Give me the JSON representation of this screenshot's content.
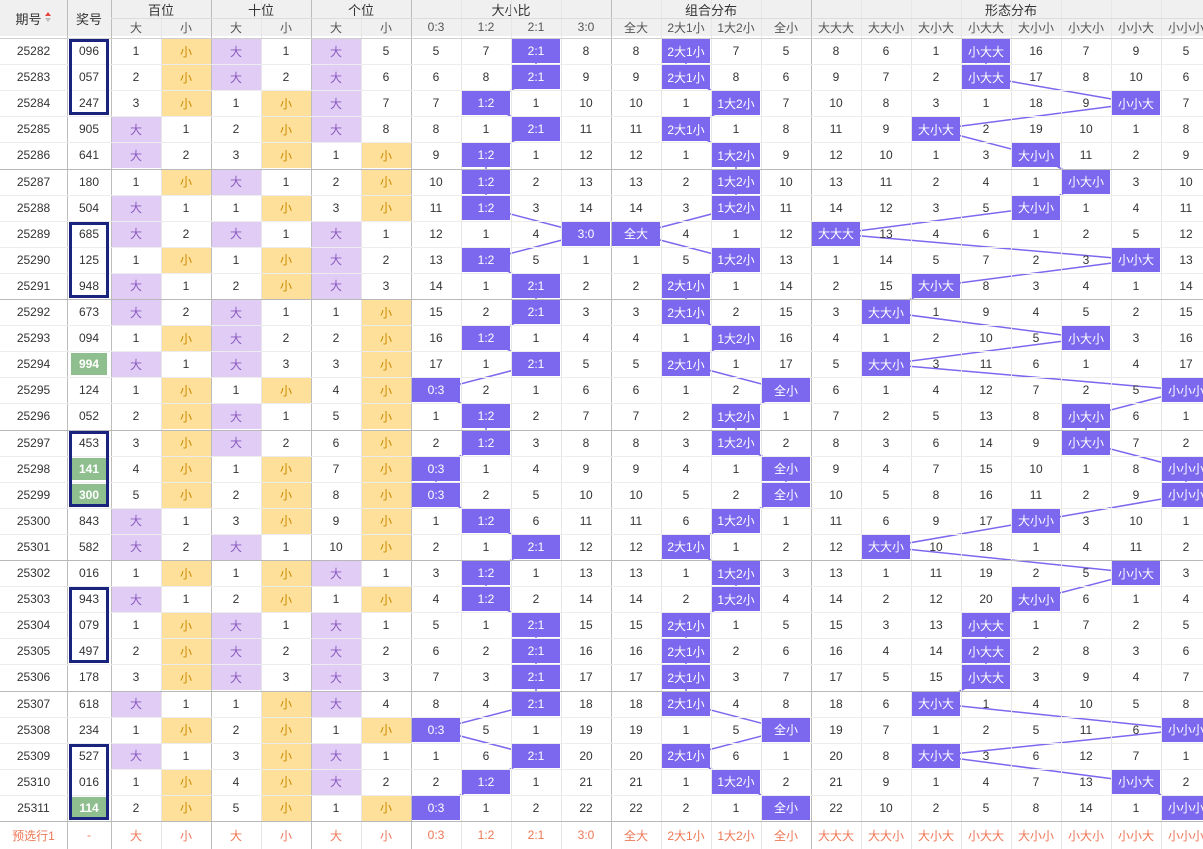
{
  "header": {
    "period_label": "期号",
    "sort_icon": "sort-up-down-icon",
    "prize_label": "奖号",
    "groups": [
      "百位",
      "十位",
      "个位",
      "大小比",
      "组合分布",
      "形态分布"
    ],
    "sub": [
      "大",
      "小",
      "大",
      "小",
      "大",
      "小",
      "0:3",
      "1:2",
      "2:1",
      "3:0",
      "全大",
      "2大1小",
      "1大2小",
      "全小",
      "大大大",
      "大大小",
      "大小大",
      "小大大",
      "大小小",
      "小大小",
      "小小大",
      "小小小"
    ]
  },
  "colors": {
    "highlight": "#7b68ee",
    "big": "#e1ccf6",
    "small": "#ffe09a",
    "repeat": "#8fbf8f",
    "box": "#1a237e",
    "line": "#7b68ee"
  },
  "rows": [
    {
      "p": "25282",
      "n": "096",
      "h": [
        1,
        "小"
      ],
      "t": [
        "大",
        1
      ],
      "u": [
        "大",
        5
      ],
      "r": [
        5,
        7,
        "2:1",
        8
      ],
      "z": [
        8,
        "2大1小",
        7,
        5
      ],
      "f": [
        8,
        6,
        1,
        "小大大",
        16,
        7,
        9,
        5
      ]
    },
    {
      "p": "25283",
      "n": "057",
      "h": [
        2,
        "小"
      ],
      "t": [
        "大",
        2
      ],
      "u": [
        "大",
        6
      ],
      "r": [
        6,
        8,
        "2:1",
        9
      ],
      "z": [
        9,
        "2大1小",
        8,
        6
      ],
      "f": [
        9,
        7,
        2,
        "小大大",
        17,
        8,
        10,
        6
      ]
    },
    {
      "p": "25284",
      "n": "247",
      "h": [
        3,
        "小"
      ],
      "t": [
        1,
        "小"
      ],
      "u": [
        "大",
        7
      ],
      "r": [
        7,
        "1:2",
        1,
        10
      ],
      "z": [
        10,
        1,
        "1大2小",
        7
      ],
      "f": [
        10,
        8,
        3,
        1,
        18,
        9,
        "小小大",
        7
      ]
    },
    {
      "p": "25285",
      "n": "905",
      "h": [
        "大",
        1
      ],
      "t": [
        2,
        "小"
      ],
      "u": [
        "大",
        8
      ],
      "r": [
        8,
        1,
        "2:1",
        11
      ],
      "z": [
        11,
        "2大1小",
        1,
        8
      ],
      "f": [
        11,
        9,
        "大小大",
        2,
        19,
        10,
        1,
        8
      ]
    },
    {
      "p": "25286",
      "n": "641",
      "h": [
        "大",
        2
      ],
      "t": [
        3,
        "小"
      ],
      "u": [
        1,
        "小"
      ],
      "r": [
        9,
        "1:2",
        1,
        12
      ],
      "z": [
        12,
        1,
        "1大2小",
        9
      ],
      "f": [
        12,
        10,
        1,
        3,
        "大小小",
        11,
        2,
        9
      ]
    },
    {
      "p": "25287",
      "n": "180",
      "h": [
        1,
        "小"
      ],
      "t": [
        "大",
        1
      ],
      "u": [
        2,
        "小"
      ],
      "r": [
        10,
        "1:2",
        2,
        13
      ],
      "z": [
        13,
        2,
        "1大2小",
        10
      ],
      "f": [
        13,
        11,
        2,
        4,
        1,
        "小大小",
        3,
        10
      ]
    },
    {
      "p": "25288",
      "n": "504",
      "h": [
        "大",
        1
      ],
      "t": [
        1,
        "小"
      ],
      "u": [
        3,
        "小"
      ],
      "r": [
        11,
        "1:2",
        3,
        14
      ],
      "z": [
        14,
        3,
        "1大2小",
        11
      ],
      "f": [
        14,
        12,
        3,
        5,
        "大小小",
        1,
        4,
        11
      ]
    },
    {
      "p": "25289",
      "n": "685",
      "h": [
        "大",
        2
      ],
      "t": [
        "大",
        1
      ],
      "u": [
        "大",
        1
      ],
      "r": [
        12,
        1,
        4,
        "3:0"
      ],
      "z": [
        "全大",
        4,
        1,
        12
      ],
      "f": [
        "大大大",
        13,
        4,
        6,
        1,
        2,
        5,
        12
      ]
    },
    {
      "p": "25290",
      "n": "125",
      "h": [
        1,
        "小"
      ],
      "t": [
        1,
        "小"
      ],
      "u": [
        "大",
        2
      ],
      "r": [
        13,
        "1:2",
        5,
        1
      ],
      "z": [
        1,
        5,
        "1大2小",
        13
      ],
      "f": [
        1,
        14,
        5,
        7,
        2,
        3,
        "小小大",
        13
      ]
    },
    {
      "p": "25291",
      "n": "948",
      "h": [
        "大",
        1
      ],
      "t": [
        2,
        "小"
      ],
      "u": [
        "大",
        3
      ],
      "r": [
        14,
        1,
        "2:1",
        2
      ],
      "z": [
        2,
        "2大1小",
        1,
        14
      ],
      "f": [
        2,
        15,
        "大小大",
        8,
        3,
        4,
        1,
        14
      ]
    },
    {
      "p": "25292",
      "n": "673",
      "h": [
        "大",
        2
      ],
      "t": [
        "大",
        1
      ],
      "u": [
        1,
        "小"
      ],
      "r": [
        15,
        2,
        "2:1",
        3
      ],
      "z": [
        3,
        "2大1小",
        2,
        15
      ],
      "f": [
        3,
        "大大小",
        1,
        9,
        4,
        5,
        2,
        15
      ]
    },
    {
      "p": "25293",
      "n": "094",
      "h": [
        1,
        "小"
      ],
      "t": [
        "大",
        2
      ],
      "u": [
        2,
        "小"
      ],
      "r": [
        16,
        "1:2",
        1,
        4
      ],
      "z": [
        4,
        1,
        "1大2小",
        16
      ],
      "f": [
        4,
        1,
        2,
        10,
        5,
        "小大小",
        3,
        16
      ]
    },
    {
      "p": "25294",
      "n": "994",
      "h": [
        "大",
        1
      ],
      "t": [
        "大",
        3
      ],
      "u": [
        3,
        "小"
      ],
      "r": [
        17,
        1,
        "2:1",
        5
      ],
      "z": [
        5,
        "2大1小",
        1,
        17
      ],
      "f": [
        5,
        "大大小",
        3,
        11,
        6,
        1,
        4,
        17
      ]
    },
    {
      "p": "25295",
      "n": "124",
      "h": [
        1,
        "小"
      ],
      "t": [
        1,
        "小"
      ],
      "u": [
        4,
        "小"
      ],
      "r": [
        "0:3",
        2,
        1,
        6
      ],
      "z": [
        6,
        1,
        2,
        "全小"
      ],
      "f": [
        6,
        1,
        4,
        12,
        7,
        2,
        5,
        "小小小"
      ]
    },
    {
      "p": "25296",
      "n": "052",
      "h": [
        2,
        "小"
      ],
      "t": [
        "大",
        1
      ],
      "u": [
        5,
        "小"
      ],
      "r": [
        1,
        "1:2",
        2,
        7
      ],
      "z": [
        7,
        2,
        "1大2小",
        1
      ],
      "f": [
        7,
        2,
        5,
        13,
        8,
        "小大小",
        6,
        1
      ]
    },
    {
      "p": "25297",
      "n": "453",
      "h": [
        3,
        "小"
      ],
      "t": [
        "大",
        2
      ],
      "u": [
        6,
        "小"
      ],
      "r": [
        2,
        "1:2",
        3,
        8
      ],
      "z": [
        8,
        3,
        "1大2小",
        2
      ],
      "f": [
        8,
        3,
        6,
        14,
        9,
        "小大小",
        7,
        2
      ]
    },
    {
      "p": "25298",
      "n": "141",
      "h": [
        4,
        "小"
      ],
      "t": [
        1,
        "小"
      ],
      "u": [
        7,
        "小"
      ],
      "r": [
        "0:3",
        1,
        4,
        9
      ],
      "z": [
        9,
        4,
        1,
        "全小"
      ],
      "f": [
        9,
        4,
        7,
        15,
        10,
        1,
        8,
        "小小小"
      ]
    },
    {
      "p": "25299",
      "n": "300",
      "h": [
        5,
        "小"
      ],
      "t": [
        2,
        "小"
      ],
      "u": [
        8,
        "小"
      ],
      "r": [
        "0:3",
        2,
        5,
        10
      ],
      "z": [
        10,
        5,
        2,
        "全小"
      ],
      "f": [
        10,
        5,
        8,
        16,
        11,
        2,
        9,
        "小小小"
      ]
    },
    {
      "p": "25300",
      "n": "843",
      "h": [
        "大",
        1
      ],
      "t": [
        3,
        "小"
      ],
      "u": [
        9,
        "小"
      ],
      "r": [
        1,
        "1:2",
        6,
        11
      ],
      "z": [
        11,
        6,
        "1大2小",
        1
      ],
      "f": [
        11,
        6,
        9,
        17,
        "大小小",
        3,
        10,
        1
      ]
    },
    {
      "p": "25301",
      "n": "582",
      "h": [
        "大",
        2
      ],
      "t": [
        "大",
        1
      ],
      "u": [
        10,
        "小"
      ],
      "r": [
        2,
        1,
        "2:1",
        12
      ],
      "z": [
        12,
        "2大1小",
        1,
        2
      ],
      "f": [
        12,
        "大大小",
        10,
        18,
        1,
        4,
        11,
        2
      ]
    },
    {
      "p": "25302",
      "n": "016",
      "h": [
        1,
        "小"
      ],
      "t": [
        1,
        "小"
      ],
      "u": [
        "大",
        1
      ],
      "r": [
        3,
        "1:2",
        1,
        13
      ],
      "z": [
        13,
        1,
        "1大2小",
        3
      ],
      "f": [
        13,
        1,
        11,
        19,
        2,
        5,
        "小小大",
        3
      ]
    },
    {
      "p": "25303",
      "n": "943",
      "h": [
        "大",
        1
      ],
      "t": [
        2,
        "小"
      ],
      "u": [
        1,
        "小"
      ],
      "r": [
        4,
        "1:2",
        2,
        14
      ],
      "z": [
        14,
        2,
        "1大2小",
        4
      ],
      "f": [
        14,
        2,
        12,
        20,
        "大小小",
        6,
        1,
        4
      ]
    },
    {
      "p": "25304",
      "n": "079",
      "h": [
        1,
        "小"
      ],
      "t": [
        "大",
        1
      ],
      "u": [
        "大",
        1
      ],
      "r": [
        5,
        1,
        "2:1",
        15
      ],
      "z": [
        15,
        "2大1小",
        1,
        5
      ],
      "f": [
        15,
        3,
        13,
        "小大大",
        1,
        7,
        2,
        5
      ]
    },
    {
      "p": "25305",
      "n": "497",
      "h": [
        2,
        "小"
      ],
      "t": [
        "大",
        2
      ],
      "u": [
        "大",
        2
      ],
      "r": [
        6,
        2,
        "2:1",
        16
      ],
      "z": [
        16,
        "2大1小",
        2,
        6
      ],
      "f": [
        16,
        4,
        14,
        "小大大",
        2,
        8,
        3,
        6
      ]
    },
    {
      "p": "25306",
      "n": "178",
      "h": [
        3,
        "小"
      ],
      "t": [
        "大",
        3
      ],
      "u": [
        "大",
        3
      ],
      "r": [
        7,
        3,
        "2:1",
        17
      ],
      "z": [
        17,
        "2大1小",
        3,
        7
      ],
      "f": [
        17,
        5,
        15,
        "小大大",
        3,
        9,
        4,
        7
      ]
    },
    {
      "p": "25307",
      "n": "618",
      "h": [
        "大",
        1
      ],
      "t": [
        1,
        "小"
      ],
      "u": [
        "大",
        4
      ],
      "r": [
        8,
        4,
        "2:1",
        18
      ],
      "z": [
        18,
        "2大1小",
        4,
        8
      ],
      "f": [
        18,
        6,
        "大小大",
        1,
        4,
        10,
        5,
        8
      ]
    },
    {
      "p": "25308",
      "n": "234",
      "h": [
        1,
        "小"
      ],
      "t": [
        2,
        "小"
      ],
      "u": [
        1,
        "小"
      ],
      "r": [
        "0:3",
        5,
        1,
        19
      ],
      "z": [
        19,
        1,
        5,
        "全小"
      ],
      "f": [
        19,
        7,
        1,
        2,
        5,
        11,
        6,
        "小小小"
      ]
    },
    {
      "p": "25309",
      "n": "527",
      "h": [
        "大",
        1
      ],
      "t": [
        3,
        "小"
      ],
      "u": [
        "大",
        1
      ],
      "r": [
        1,
        6,
        "2:1",
        20
      ],
      "z": [
        20,
        "2大1小",
        6,
        1
      ],
      "f": [
        20,
        8,
        "大小大",
        3,
        6,
        12,
        7,
        1
      ]
    },
    {
      "p": "25310",
      "n": "016",
      "h": [
        1,
        "小"
      ],
      "t": [
        4,
        "小"
      ],
      "u": [
        "大",
        2
      ],
      "r": [
        2,
        "1:2",
        1,
        21
      ],
      "z": [
        21,
        1,
        "1大2小",
        2
      ],
      "f": [
        21,
        9,
        1,
        4,
        7,
        13,
        "小小大",
        2
      ]
    },
    {
      "p": "25311",
      "n": "114",
      "h": [
        2,
        "小"
      ],
      "t": [
        5,
        "小"
      ],
      "u": [
        1,
        "小"
      ],
      "r": [
        "0:3",
        1,
        2,
        22
      ],
      "z": [
        22,
        2,
        1,
        "全小"
      ],
      "f": [
        22,
        10,
        2,
        5,
        8,
        14,
        1,
        "小小小"
      ]
    }
  ],
  "green_cells": [
    "25294",
    "25298",
    "25299",
    "25311"
  ],
  "preselect": {
    "label": "预选行1",
    "prize": "-",
    "cells": [
      "大",
      "小",
      "大",
      "小",
      "大",
      "小",
      "0:3",
      "1:2",
      "2:1",
      "3:0",
      "全大",
      "2大1小",
      "1大2小",
      "全小",
      "大大大",
      "大大小",
      "大小大",
      "小大大",
      "大小小",
      "小大小",
      "小小大",
      "小小小"
    ]
  },
  "boxes": [
    [
      "25282",
      "25284"
    ],
    [
      "25289",
      "25291"
    ],
    [
      "25297",
      "25299"
    ],
    [
      "25303",
      "25305"
    ],
    [
      "25309",
      "25311"
    ]
  ]
}
